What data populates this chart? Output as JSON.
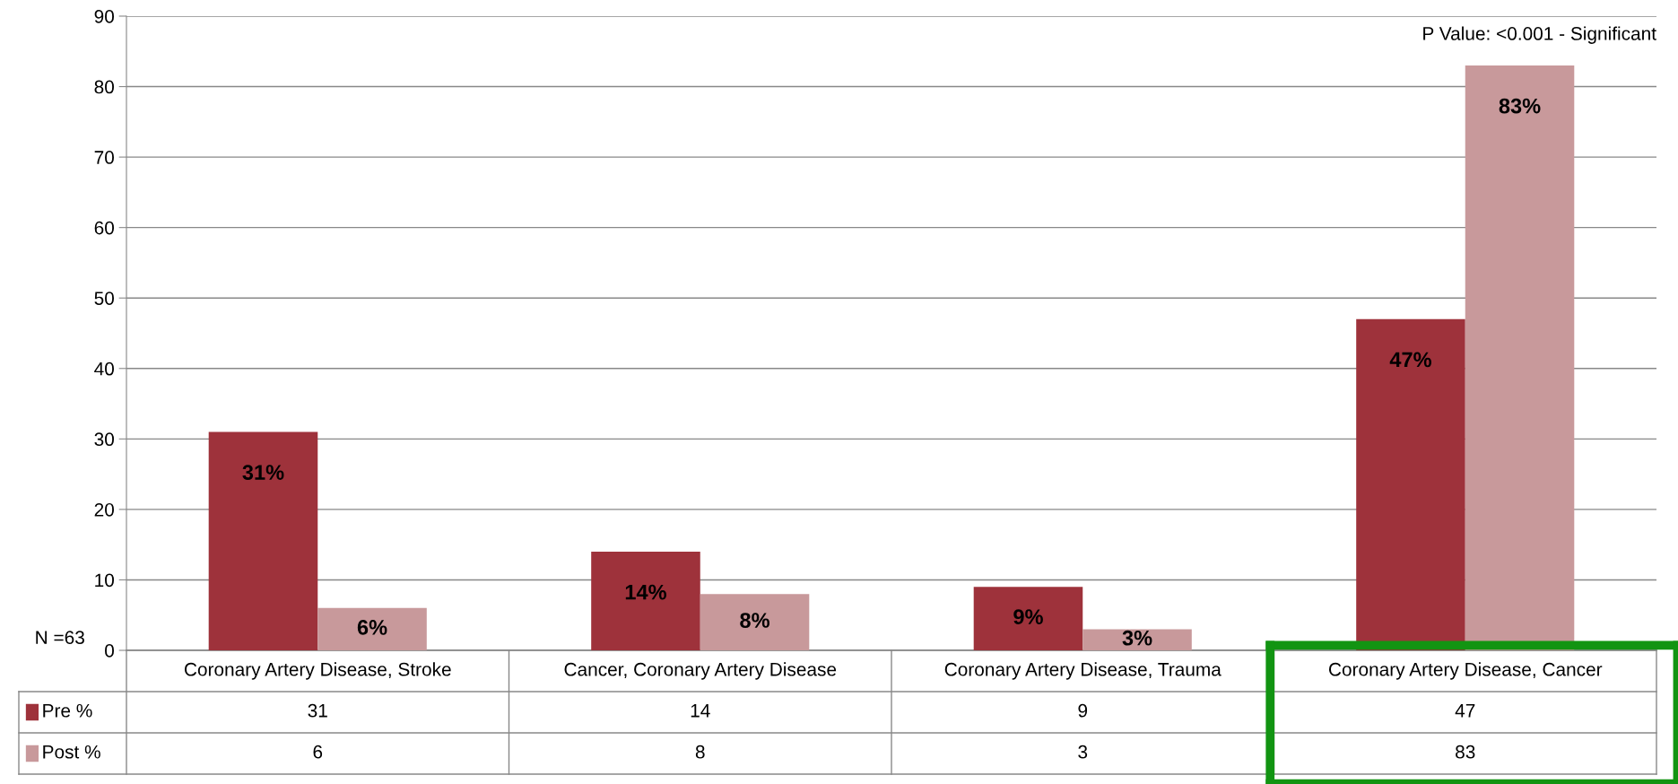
{
  "chart_data": {
    "type": "bar",
    "categories": [
      "Coronary Artery Disease, Stroke",
      "Cancer, Coronary Artery Disease",
      "Coronary Artery Disease, Trauma",
      "Coronary Artery Disease, Cancer"
    ],
    "series": [
      {
        "name": "Pre %",
        "color": "#9e323b",
        "values": [
          31,
          14,
          9,
          47
        ],
        "value_labels": [
          "31",
          "14",
          "9",
          "47"
        ]
      },
      {
        "name": "Post %",
        "color": "#c8999b",
        "values": [
          6,
          8,
          3,
          83
        ],
        "value_labels": [
          "6",
          "8",
          "3",
          "83"
        ]
      }
    ],
    "ylim": [
      0,
      90
    ],
    "yticks": [
      0,
      10,
      20,
      30,
      40,
      50,
      60,
      70,
      80,
      90
    ],
    "grid": "y",
    "legend": "bottom",
    "annotations": [
      "P Value: <0.001 - Significant",
      "N =63",
      {
        "text": "31%",
        "x": "Coronary Artery Disease, Stroke",
        "y": 31
      },
      {
        "text": "14%",
        "x": "Cancer, Coronary Artery Disease",
        "y": 14
      },
      {
        "text": "9%",
        "x": "Coronary Artery Disease, Trauma",
        "y": 9
      },
      {
        "text": "47%",
        "x": "Coronary Artery Disease, Cancer",
        "y": 47
      },
      {
        "text": "6%",
        "x": "Coronary Artery Disease, Stroke",
        "y": 6
      },
      {
        "text": "8%",
        "x": "Cancer, Coronary Artery Disease",
        "y": 8
      },
      {
        "text": "3%",
        "x": "Coronary Artery Disease, Trauma",
        "y": 3
      },
      {
        "text": "83%",
        "x": "Coronary Artery Disease, Cancer",
        "y": 83
      }
    ]
  }
}
